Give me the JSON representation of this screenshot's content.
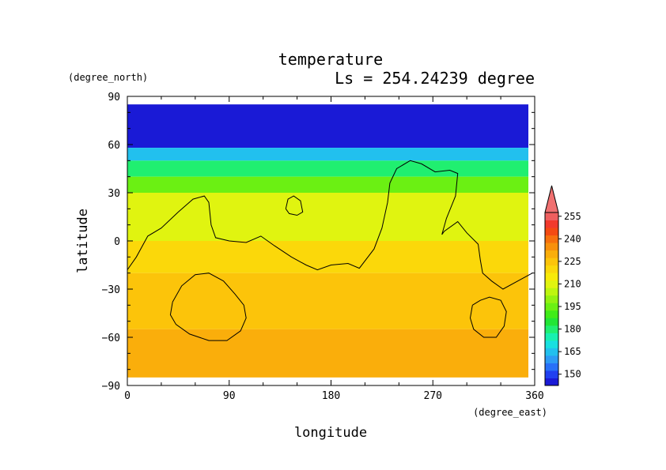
{
  "chart_data": {
    "type": "contour",
    "title": "temperature",
    "subtitle": "Ls = 254.24239 degree",
    "xlabel": "longitude",
    "ylabel": "latitude",
    "x_units": "(degree_east)",
    "y_units": "(degree_north)",
    "xlim": [
      0,
      360
    ],
    "ylim": [
      -90,
      90
    ],
    "data_lat_range": [
      -85,
      85
    ],
    "x_ticks": [
      0,
      90,
      180,
      270,
      360
    ],
    "y_ticks": [
      90,
      60,
      30,
      0,
      -30,
      -60,
      -90
    ],
    "x_tick_labels": [
      "0",
      "90",
      "180",
      "270",
      "360"
    ],
    "y_tick_labels": [
      "90",
      "60",
      "30",
      "0",
      "−30",
      "−60",
      "−90"
    ],
    "colorbar": {
      "levels": [
        145,
        150,
        155,
        160,
        165,
        170,
        175,
        180,
        185,
        190,
        195,
        200,
        205,
        210,
        215,
        220,
        225,
        230,
        235,
        240,
        245,
        250,
        255,
        260
      ],
      "colors": [
        "#1a1ad6",
        "#2040f0",
        "#2870f8",
        "#2d9bf5",
        "#22c0ee",
        "#18e0e0",
        "#18f0b0",
        "#20ef70",
        "#22e635",
        "#40ec18",
        "#6bf013",
        "#93f211",
        "#bdf60f",
        "#e0f410",
        "#f8ea08",
        "#fbd80a",
        "#fcc40a",
        "#faae0b",
        "#f8900c",
        "#f7700d",
        "#f44a12",
        "#f23a2c",
        "#ef5f5f"
      ],
      "extend": "max",
      "extend_color": "#f07070",
      "tick_values": [
        150,
        165,
        180,
        195,
        210,
        225,
        240,
        255
      ],
      "tick_labels": [
        "150",
        "165",
        "180",
        "195",
        "210",
        "225",
        "240",
        "255"
      ]
    },
    "regions": [
      {
        "lat_range": [
          58,
          85
        ],
        "temperature": 148
      },
      {
        "lat_range": [
          50,
          58
        ],
        "temperature": 165
      },
      {
        "lat_range": [
          40,
          50
        ],
        "temperature": 182
      },
      {
        "lat_range": [
          30,
          40
        ],
        "temperature": 198
      },
      {
        "lat_range": [
          0,
          30
        ],
        "temperature": 212
      },
      {
        "lat_range": [
          -20,
          0
        ],
        "temperature": 222
      },
      {
        "lat_range": [
          -55,
          -20
        ],
        "temperature": 228
      },
      {
        "lat_range": [
          -85,
          -55
        ],
        "temperature": 230
      }
    ],
    "contours": [
      {
        "name": "main",
        "points": [
          [
            0,
            -18
          ],
          [
            8,
            -10
          ],
          [
            18,
            3
          ],
          [
            30,
            8
          ],
          [
            45,
            18
          ],
          [
            58,
            26
          ],
          [
            68,
            28
          ],
          [
            72,
            24
          ],
          [
            74,
            10
          ],
          [
            78,
            2
          ],
          [
            90,
            0
          ],
          [
            105,
            -1
          ],
          [
            118,
            3
          ],
          [
            130,
            -3
          ],
          [
            145,
            -10
          ],
          [
            158,
            -15
          ],
          [
            168,
            -18
          ],
          [
            180,
            -15
          ],
          [
            195,
            -14
          ],
          [
            205,
            -17
          ],
          [
            218,
            -5
          ],
          [
            225,
            8
          ],
          [
            230,
            24
          ],
          [
            232,
            36
          ],
          [
            238,
            45
          ],
          [
            250,
            50
          ],
          [
            260,
            48
          ],
          [
            272,
            43
          ],
          [
            285,
            44
          ],
          [
            292,
            42
          ],
          [
            290,
            28
          ],
          [
            282,
            14
          ],
          [
            278,
            4
          ],
          [
            280,
            6
          ],
          [
            292,
            12
          ],
          [
            300,
            5
          ],
          [
            310,
            -2
          ],
          [
            312,
            -12
          ],
          [
            314,
            -20
          ],
          [
            322,
            -25
          ],
          [
            332,
            -30
          ],
          [
            345,
            -25
          ],
          [
            358,
            -20
          ]
        ]
      },
      {
        "name": "small-north",
        "points": [
          [
            140,
            20
          ],
          [
            142,
            26
          ],
          [
            147,
            28
          ],
          [
            153,
            25
          ],
          [
            155,
            18
          ],
          [
            150,
            16
          ],
          [
            143,
            17
          ],
          [
            140,
            20
          ]
        ]
      },
      {
        "name": "south-west-loop",
        "points": [
          [
            40,
            -38
          ],
          [
            48,
            -28
          ],
          [
            60,
            -21
          ],
          [
            72,
            -20
          ],
          [
            85,
            -25
          ],
          [
            95,
            -33
          ],
          [
            103,
            -40
          ],
          [
            105,
            -48
          ],
          [
            100,
            -56
          ],
          [
            88,
            -62
          ],
          [
            72,
            -62
          ],
          [
            55,
            -58
          ],
          [
            43,
            -52
          ],
          [
            38,
            -46
          ],
          [
            40,
            -38
          ]
        ]
      },
      {
        "name": "south-east-loop",
        "points": [
          [
            305,
            -40
          ],
          [
            312,
            -37
          ],
          [
            320,
            -35
          ],
          [
            330,
            -37
          ],
          [
            335,
            -44
          ],
          [
            333,
            -53
          ],
          [
            326,
            -60
          ],
          [
            315,
            -60
          ],
          [
            306,
            -55
          ],
          [
            303,
            -48
          ],
          [
            305,
            -40
          ]
        ]
      }
    ]
  }
}
